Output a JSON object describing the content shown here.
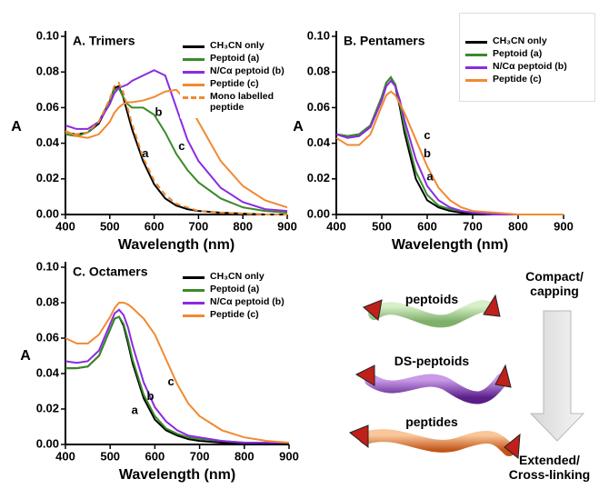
{
  "chart_data": [
    {
      "type": "line",
      "title": "A. Trimers",
      "x_label": "Wavelength (nm)",
      "y_label": "A",
      "x": [
        400,
        425,
        450,
        475,
        500,
        510,
        520,
        530,
        540,
        550,
        575,
        600,
        625,
        650,
        675,
        700,
        750,
        800,
        850,
        900
      ],
      "series": [
        {
          "name": "CH₃CN only",
          "color": "#000000",
          "values": [
            0.046,
            0.045,
            0.046,
            0.051,
            0.063,
            0.071,
            0.072,
            0.066,
            0.057,
            0.048,
            0.03,
            0.017,
            0.009,
            0.005,
            0.003,
            0.002,
            0.001,
            0.0005,
            0,
            0
          ]
        },
        {
          "name": "Peptoid (a)",
          "color": "#3a8a2a",
          "values": [
            0.045,
            0.044,
            0.046,
            0.052,
            0.064,
            0.07,
            0.071,
            0.066,
            0.062,
            0.06,
            0.06,
            0.056,
            0.046,
            0.034,
            0.025,
            0.018,
            0.009,
            0.004,
            0.002,
            0.001
          ]
        },
        {
          "name": "N/Cα peptoid (b)",
          "color": "#8a2be2",
          "values": [
            0.05,
            0.048,
            0.048,
            0.052,
            0.062,
            0.068,
            0.071,
            0.072,
            0.073,
            0.075,
            0.078,
            0.081,
            0.078,
            0.06,
            0.042,
            0.03,
            0.015,
            0.007,
            0.003,
            0.002
          ]
        },
        {
          "name": "Peptide (c)",
          "color": "#f08a30",
          "values": [
            0.047,
            0.044,
            0.043,
            0.045,
            0.052,
            0.057,
            0.06,
            0.062,
            0.063,
            0.063,
            0.064,
            0.066,
            0.069,
            0.07,
            0.063,
            0.052,
            0.03,
            0.016,
            0.008,
            0.004
          ]
        },
        {
          "name": "Mono labelled peptide",
          "color": "#f08a30",
          "dashed": true,
          "values": [
            0.046,
            0.045,
            0.046,
            0.052,
            0.065,
            0.072,
            0.074,
            0.069,
            0.06,
            0.051,
            0.032,
            0.019,
            0.011,
            0.006,
            0.004,
            0.002,
            0.001,
            0.0005,
            0,
            0
          ]
        }
      ],
      "annotations": [
        {
          "text": "a",
          "x": 580,
          "y": 0.034
        },
        {
          "text": "b",
          "x": 610,
          "y": 0.057
        },
        {
          "text": "c",
          "x": 662,
          "y": 0.038
        }
      ],
      "xlim": [
        400,
        900
      ],
      "xticks": [
        400,
        500,
        600,
        700,
        800,
        900
      ],
      "ylim": [
        0,
        0.1
      ],
      "yticks": [
        {
          "value": 0,
          "label": "0.00"
        },
        {
          "value": 0.02,
          "label": "0.02"
        },
        {
          "value": 0.04,
          "label": "0.04"
        },
        {
          "value": 0.06,
          "label": "0.06"
        },
        {
          "value": 0.08,
          "label": "0.08"
        },
        {
          "value": 0.1,
          "label": "0.10"
        }
      ]
    },
    {
      "type": "line",
      "title": "B. Pentamers",
      "x_label": "Wavelength (nm)",
      "y_label": "A",
      "x": [
        400,
        425,
        450,
        475,
        500,
        510,
        520,
        530,
        540,
        550,
        575,
        600,
        625,
        650,
        675,
        700,
        750,
        800,
        850,
        900
      ],
      "series": [
        {
          "name": "CH₃CN only",
          "color": "#000000",
          "values": [
            0.045,
            0.044,
            0.045,
            0.05,
            0.066,
            0.074,
            0.077,
            0.072,
            0.06,
            0.046,
            0.02,
            0.008,
            0.004,
            0.002,
            0.001,
            0.001,
            0,
            0,
            0,
            0
          ]
        },
        {
          "name": "Peptoid (a)",
          "color": "#3a8a2a",
          "values": [
            0.045,
            0.044,
            0.045,
            0.05,
            0.066,
            0.074,
            0.077,
            0.073,
            0.062,
            0.049,
            0.024,
            0.011,
            0.005,
            0.003,
            0.002,
            0.001,
            0,
            0,
            0,
            0
          ]
        },
        {
          "name": "N/Cα peptoid (b)",
          "color": "#8a2be2",
          "values": [
            0.045,
            0.043,
            0.044,
            0.049,
            0.064,
            0.072,
            0.075,
            0.072,
            0.064,
            0.053,
            0.031,
            0.016,
            0.008,
            0.004,
            0.002,
            0.001,
            0,
            0,
            0,
            0
          ]
        },
        {
          "name": "Peptide (c)",
          "color": "#f08a30",
          "values": [
            0.043,
            0.039,
            0.039,
            0.045,
            0.061,
            0.067,
            0.069,
            0.067,
            0.062,
            0.057,
            0.042,
            0.027,
            0.015,
            0.008,
            0.004,
            0.002,
            0.001,
            0,
            0,
            0
          ]
        }
      ],
      "annotations": [
        {
          "text": "c",
          "x": 600,
          "y": 0.044
        },
        {
          "text": "b",
          "x": 600,
          "y": 0.034
        },
        {
          "text": "a",
          "x": 606,
          "y": 0.021
        }
      ],
      "xlim": [
        400,
        900
      ],
      "xticks": [
        400,
        500,
        600,
        700,
        800,
        900
      ],
      "ylim": [
        0,
        0.1
      ],
      "yticks": [
        {
          "value": 0,
          "label": "0.00"
        },
        {
          "value": 0.02,
          "label": "0.02"
        },
        {
          "value": 0.04,
          "label": "0.04"
        },
        {
          "value": 0.06,
          "label": "0.06"
        },
        {
          "value": 0.08,
          "label": "0.08"
        },
        {
          "value": 0.1,
          "label": "0.10"
        }
      ]
    },
    {
      "type": "line",
      "title": "C. Octamers",
      "x_label": "Wavelength (nm)",
      "y_label": "A",
      "x": [
        400,
        425,
        450,
        475,
        500,
        510,
        520,
        530,
        540,
        550,
        575,
        600,
        625,
        650,
        675,
        700,
        750,
        800,
        850,
        900
      ],
      "series": [
        {
          "name": "CH₃CN only",
          "color": "#000000",
          "values": [
            0.043,
            0.043,
            0.044,
            0.05,
            0.065,
            0.071,
            0.072,
            0.067,
            0.057,
            0.046,
            0.026,
            0.014,
            0.008,
            0.005,
            0.003,
            0.002,
            0.001,
            0.001,
            0,
            0
          ]
        },
        {
          "name": "Peptoid (a)",
          "color": "#3a8a2a",
          "values": [
            0.043,
            0.043,
            0.044,
            0.05,
            0.065,
            0.071,
            0.072,
            0.068,
            0.059,
            0.048,
            0.028,
            0.016,
            0.009,
            0.006,
            0.004,
            0.003,
            0.002,
            0.001,
            0.001,
            0.001
          ]
        },
        {
          "name": "N/Cα peptoid (b)",
          "color": "#8a2be2",
          "values": [
            0.047,
            0.046,
            0.047,
            0.053,
            0.068,
            0.074,
            0.076,
            0.073,
            0.066,
            0.056,
            0.035,
            0.021,
            0.013,
            0.008,
            0.005,
            0.004,
            0.002,
            0.001,
            0.001,
            0.001
          ]
        },
        {
          "name": "Peptide (c)",
          "color": "#f08a30",
          "values": [
            0.06,
            0.057,
            0.057,
            0.062,
            0.072,
            0.077,
            0.08,
            0.08,
            0.079,
            0.077,
            0.071,
            0.062,
            0.048,
            0.034,
            0.023,
            0.016,
            0.008,
            0.004,
            0.002,
            0.001
          ]
        }
      ],
      "annotations": [
        {
          "text": "a",
          "x": 555,
          "y": 0.019
        },
        {
          "text": "b",
          "x": 590,
          "y": 0.027
        },
        {
          "text": "c",
          "x": 636,
          "y": 0.035
        }
      ],
      "xlim": [
        400,
        900
      ],
      "xticks": [
        400,
        500,
        600,
        700,
        800,
        900
      ],
      "ylim": [
        0,
        0.1
      ],
      "yticks": [
        {
          "value": 0,
          "label": "0.00"
        },
        {
          "value": 0.02,
          "label": "0.02"
        },
        {
          "value": 0.04,
          "label": "0.04"
        },
        {
          "value": 0.06,
          "label": "0.06"
        },
        {
          "value": 0.08,
          "label": "0.08"
        },
        {
          "value": 0.1,
          "label": "0.10"
        }
      ]
    }
  ],
  "diagram": {
    "top_label": "Compact/ capping",
    "bottom_label": "Extended/ Cross-linking",
    "ribbons": [
      "peptoids",
      "DS-peptoids",
      "peptides"
    ]
  }
}
